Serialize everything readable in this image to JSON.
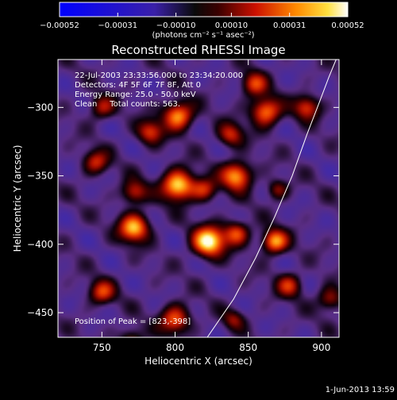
{
  "chart_data": {
    "type": "heatmap",
    "title": "Reconstructed RHESSI Image",
    "xlabel": "Heliocentric X (arcsec)",
    "ylabel": "Heliocentric Y (arcsec)",
    "xlim": [
      720,
      912
    ],
    "ylim": [
      -468,
      -265
    ],
    "x_ticks": [
      750,
      800,
      850,
      900
    ],
    "y_ticks": [
      -300,
      -350,
      -400,
      -450
    ],
    "x_tick_labels": [
      "750",
      "800",
      "850",
      "900"
    ],
    "y_tick_labels": [
      "−300",
      "−350",
      "−400",
      "−450"
    ],
    "colorbar": {
      "min": -0.00052,
      "max": 0.00052,
      "ticks": [
        -0.00052,
        -0.00031,
        -0.0001,
        0.0001,
        0.00031,
        0.00052
      ],
      "tick_labels": [
        "−0.00052",
        "−0.00031",
        "−0.00010",
        "0.00010",
        "0.00031",
        "0.00052"
      ],
      "unit_label": "(photons cm⁻² s⁻¹ asec⁻²)"
    },
    "annotations": [
      "22-Jul-2003 23:33:56.000 to 23:34:20.000",
      "Detectors: 4F 5F 6F 7F 8F, Att 0",
      "Energy Range: 25.0 - 50.0 keV",
      "Clean     Total counts: 563."
    ],
    "peak_label": "Position of Peak = [823,-398]",
    "peak": [
      823,
      -398
    ],
    "limb_curve": [
      [
        822,
        -468
      ],
      [
        840,
        -440
      ],
      [
        855,
        -410
      ],
      [
        868,
        -380
      ],
      [
        880,
        -350
      ],
      [
        890,
        -320
      ],
      [
        899,
        -295
      ],
      [
        905,
        -278
      ],
      [
        910,
        -265
      ]
    ],
    "sources": [
      {
        "x": 823,
        "y": -398,
        "amp": 1.0,
        "sigma": 7.5
      },
      {
        "x": 802,
        "y": -357,
        "amp": 0.95,
        "sigma": 7.5
      },
      {
        "x": 802,
        "y": -306,
        "amp": 0.8,
        "sigma": 7
      },
      {
        "x": 772,
        "y": -388,
        "amp": 0.85,
        "sigma": 7
      },
      {
        "x": 772,
        "y": -362,
        "amp": 0.5,
        "sigma": 6
      },
      {
        "x": 842,
        "y": -350,
        "amp": 0.8,
        "sigma": 7
      },
      {
        "x": 862,
        "y": -303,
        "amp": 0.75,
        "sigma": 7
      },
      {
        "x": 854,
        "y": -283,
        "amp": 0.55,
        "sigma": 6
      },
      {
        "x": 842,
        "y": -392,
        "amp": 0.6,
        "sigma": 6
      },
      {
        "x": 868,
        "y": -398,
        "amp": 0.8,
        "sigma": 6
      },
      {
        "x": 890,
        "y": -300,
        "amp": 0.55,
        "sigma": 6
      },
      {
        "x": 800,
        "y": -455,
        "amp": 0.65,
        "sigma": 7
      },
      {
        "x": 750,
        "y": -435,
        "amp": 0.55,
        "sigma": 6
      },
      {
        "x": 878,
        "y": -430,
        "amp": 0.5,
        "sigma": 6
      },
      {
        "x": 746,
        "y": -340,
        "amp": 0.5,
        "sigma": 6
      },
      {
        "x": 783,
        "y": -318,
        "amp": 0.55,
        "sigma": 6
      },
      {
        "x": 838,
        "y": -320,
        "amp": 0.5,
        "sigma": 6
      },
      {
        "x": 750,
        "y": -300,
        "amp": 0.45,
        "sigma": 6
      },
      {
        "x": 820,
        "y": -360,
        "amp": 0.5,
        "sigma": 6
      },
      {
        "x": 870,
        "y": -360,
        "amp": 0.4,
        "sigma": 5
      },
      {
        "x": 906,
        "y": -440,
        "amp": 0.45,
        "sigma": 6
      },
      {
        "x": 840,
        "y": -455,
        "amp": 0.35,
        "sigma": 5
      },
      {
        "x": 770,
        "y": -470,
        "amp": 0.4,
        "sigma": 6
      }
    ]
  },
  "timestamp": "1-Jun-2013 13:59",
  "colors": {
    "background": "#000000",
    "limb": "#ffffff",
    "base": "#5a2d84"
  }
}
